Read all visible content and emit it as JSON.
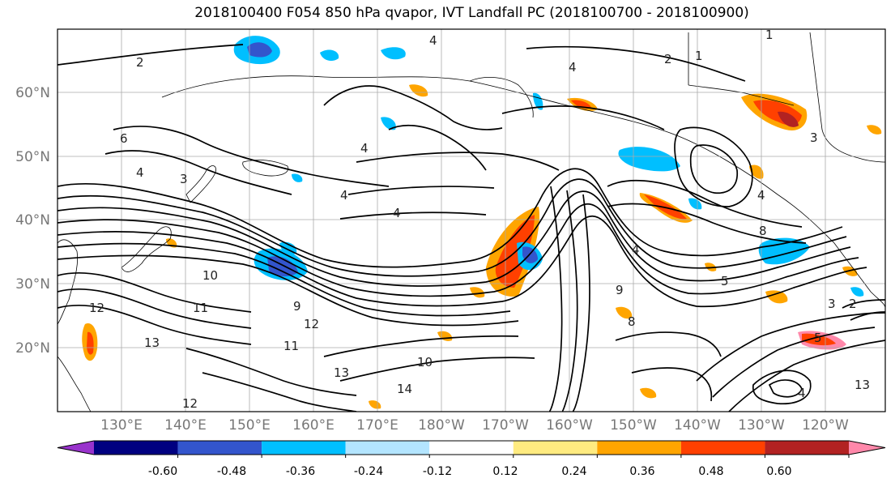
{
  "title": "2018100400 F054 850 hPa qvapor, IVT Landfall PC (2018100700 - 2018100900)",
  "lat_labels": [
    "60°N",
    "50°N",
    "40°N",
    "30°N",
    "20°N"
  ],
  "lon_labels": [
    "130°E",
    "140°E",
    "150°E",
    "160°E",
    "170°E",
    "180°W",
    "170°W",
    "160°W",
    "150°W",
    "140°W",
    "130°W",
    "120°W"
  ],
  "colorbar": {
    "ticks": [
      "-0.60",
      "-0.48",
      "-0.36",
      "-0.24",
      "-0.12",
      "0.12",
      "0.24",
      "0.36",
      "0.48",
      "0.60"
    ],
    "colors": [
      "#9933cc",
      "#000080",
      "#3355cc",
      "#00bfff",
      "#b3e5ff",
      "#ffffff",
      "#ffeb80",
      "#ffa500",
      "#ff4000",
      "#b22222",
      "#ff88aa"
    ]
  },
  "contour_labels": [
    "2",
    "1",
    "4",
    "2",
    "1",
    "6",
    "3",
    "4",
    "3",
    "4",
    "4",
    "4",
    "8",
    "4",
    "4",
    "5",
    "10",
    "11",
    "12",
    "13",
    "9",
    "12",
    "11",
    "10",
    "13",
    "14",
    "12",
    "9",
    "8",
    "4",
    "5",
    "3",
    "2",
    "4",
    "13"
  ]
}
